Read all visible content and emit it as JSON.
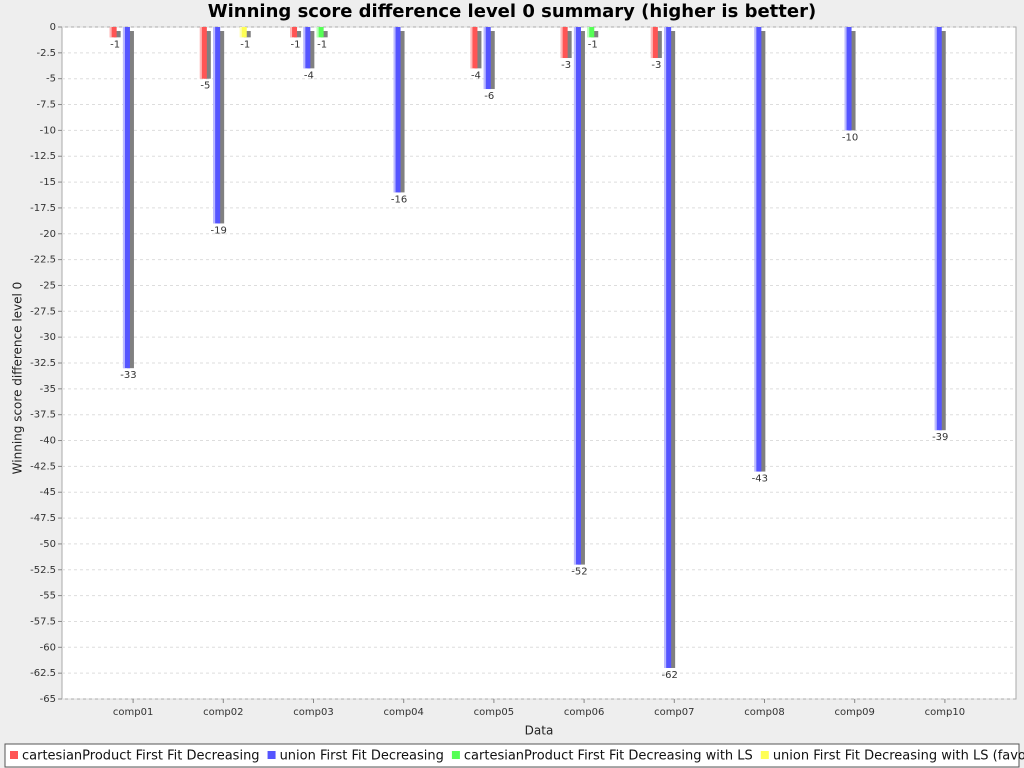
{
  "chart_data": {
    "type": "bar",
    "title": "Winning score difference level 0 summary (higher is better)",
    "x_label": "Data",
    "y_label": "Winning score difference level 0",
    "categories": [
      "comp01",
      "comp02",
      "comp03",
      "comp04",
      "comp05",
      "comp06",
      "comp07",
      "comp08",
      "comp09",
      "comp10"
    ],
    "series": [
      {
        "name": "cartesianProduct First Fit Decreasing",
        "color": "#ff5555",
        "values": [
          -1,
          -5,
          -1,
          null,
          -4,
          -3,
          -3,
          null,
          null,
          null
        ]
      },
      {
        "name": "union First Fit Decreasing",
        "color": "#5555ff",
        "values": [
          -33,
          -19,
          -4,
          -16,
          -6,
          -52,
          -62,
          -43,
          -10,
          -39
        ]
      },
      {
        "name": "cartesianProduct First Fit Decreasing with LS",
        "color": "#55ff55",
        "values": [
          null,
          null,
          -1,
          null,
          null,
          -1,
          null,
          null,
          null,
          null
        ]
      },
      {
        "name": "union First Fit Decreasing with LS (favorite)",
        "color": "#ffff55",
        "values": [
          null,
          -1,
          null,
          null,
          null,
          null,
          null,
          null,
          null,
          null
        ]
      }
    ],
    "ylim": [
      0,
      -65
    ],
    "yticks": [
      0,
      -2.5,
      -5,
      -7.5,
      -10,
      -12.5,
      -15,
      -17.5,
      -20,
      -22.5,
      -25,
      -27.5,
      -30,
      -32.5,
      -35,
      -37.5,
      -40,
      -42.5,
      -45,
      -47.5,
      -50,
      -52.5,
      -55,
      -57.5,
      -60,
      -62.5,
      -65
    ],
    "grid": true,
    "legend": "bottom"
  }
}
